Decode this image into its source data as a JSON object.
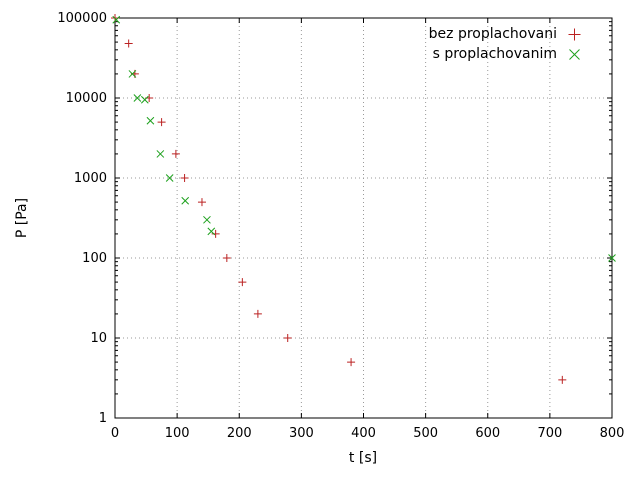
{
  "chart_data": {
    "type": "scatter",
    "title": "",
    "xlabel": "t [s]",
    "ylabel": "P [Pa]",
    "xlim": [
      0,
      800
    ],
    "ylim": [
      1,
      100000
    ],
    "y_scale": "log",
    "x_ticks": [
      0,
      100,
      200,
      300,
      400,
      500,
      600,
      700,
      800
    ],
    "y_ticks": [
      1,
      10,
      100,
      1000,
      10000,
      100000
    ],
    "grid": "dotted",
    "grid_color": "#9a9a9a",
    "axis_color": "#000000",
    "background": "#ffffff",
    "legend_position": "top-right-inside",
    "series": [
      {
        "name": "bez proplachovani",
        "marker": "plus",
        "color": "#bb2222",
        "points": [
          [
            0,
            100000
          ],
          [
            22,
            48000
          ],
          [
            32,
            20000
          ],
          [
            55,
            10000
          ],
          [
            75,
            5000
          ],
          [
            98,
            2000
          ],
          [
            112,
            1000
          ],
          [
            140,
            500
          ],
          [
            162,
            200
          ],
          [
            180,
            100
          ],
          [
            205,
            50
          ],
          [
            230,
            20
          ],
          [
            278,
            10
          ],
          [
            380,
            5
          ],
          [
            720,
            3
          ]
        ]
      },
      {
        "name": "s proplachovanim",
        "marker": "cross",
        "color": "#1ca01c",
        "points": [
          [
            2,
            95000
          ],
          [
            28,
            20000
          ],
          [
            36,
            10000
          ],
          [
            48,
            9500
          ],
          [
            57,
            5200
          ],
          [
            73,
            2000
          ],
          [
            88,
            1000
          ],
          [
            113,
            520
          ],
          [
            148,
            300
          ],
          [
            155,
            215
          ],
          [
            800,
            100
          ]
        ]
      }
    ]
  }
}
